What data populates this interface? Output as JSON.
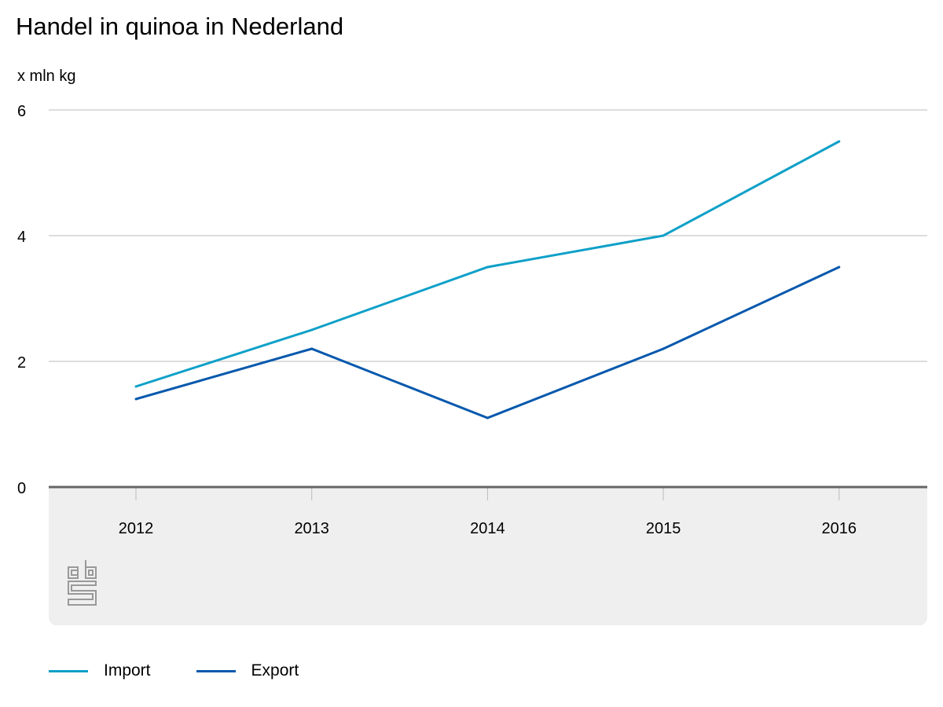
{
  "chart_data": {
    "type": "line",
    "title": "Handel in quinoa in Nederland",
    "ylabel": "x mln kg",
    "xlabel": "",
    "categories": [
      "2012",
      "2013",
      "2014",
      "2015",
      "2016"
    ],
    "ylim": [
      0,
      6
    ],
    "yticks": [
      0,
      2,
      4,
      6
    ],
    "grid": true,
    "legend_position": "bottom-left",
    "series": [
      {
        "name": "Import",
        "color": "#0ea0c8",
        "values": [
          1.6,
          2.5,
          3.5,
          4.0,
          5.5
        ]
      },
      {
        "name": "Export",
        "color": "#0558ad",
        "values": [
          1.4,
          2.2,
          1.1,
          2.2,
          3.5
        ]
      }
    ]
  },
  "logo": "cbs"
}
